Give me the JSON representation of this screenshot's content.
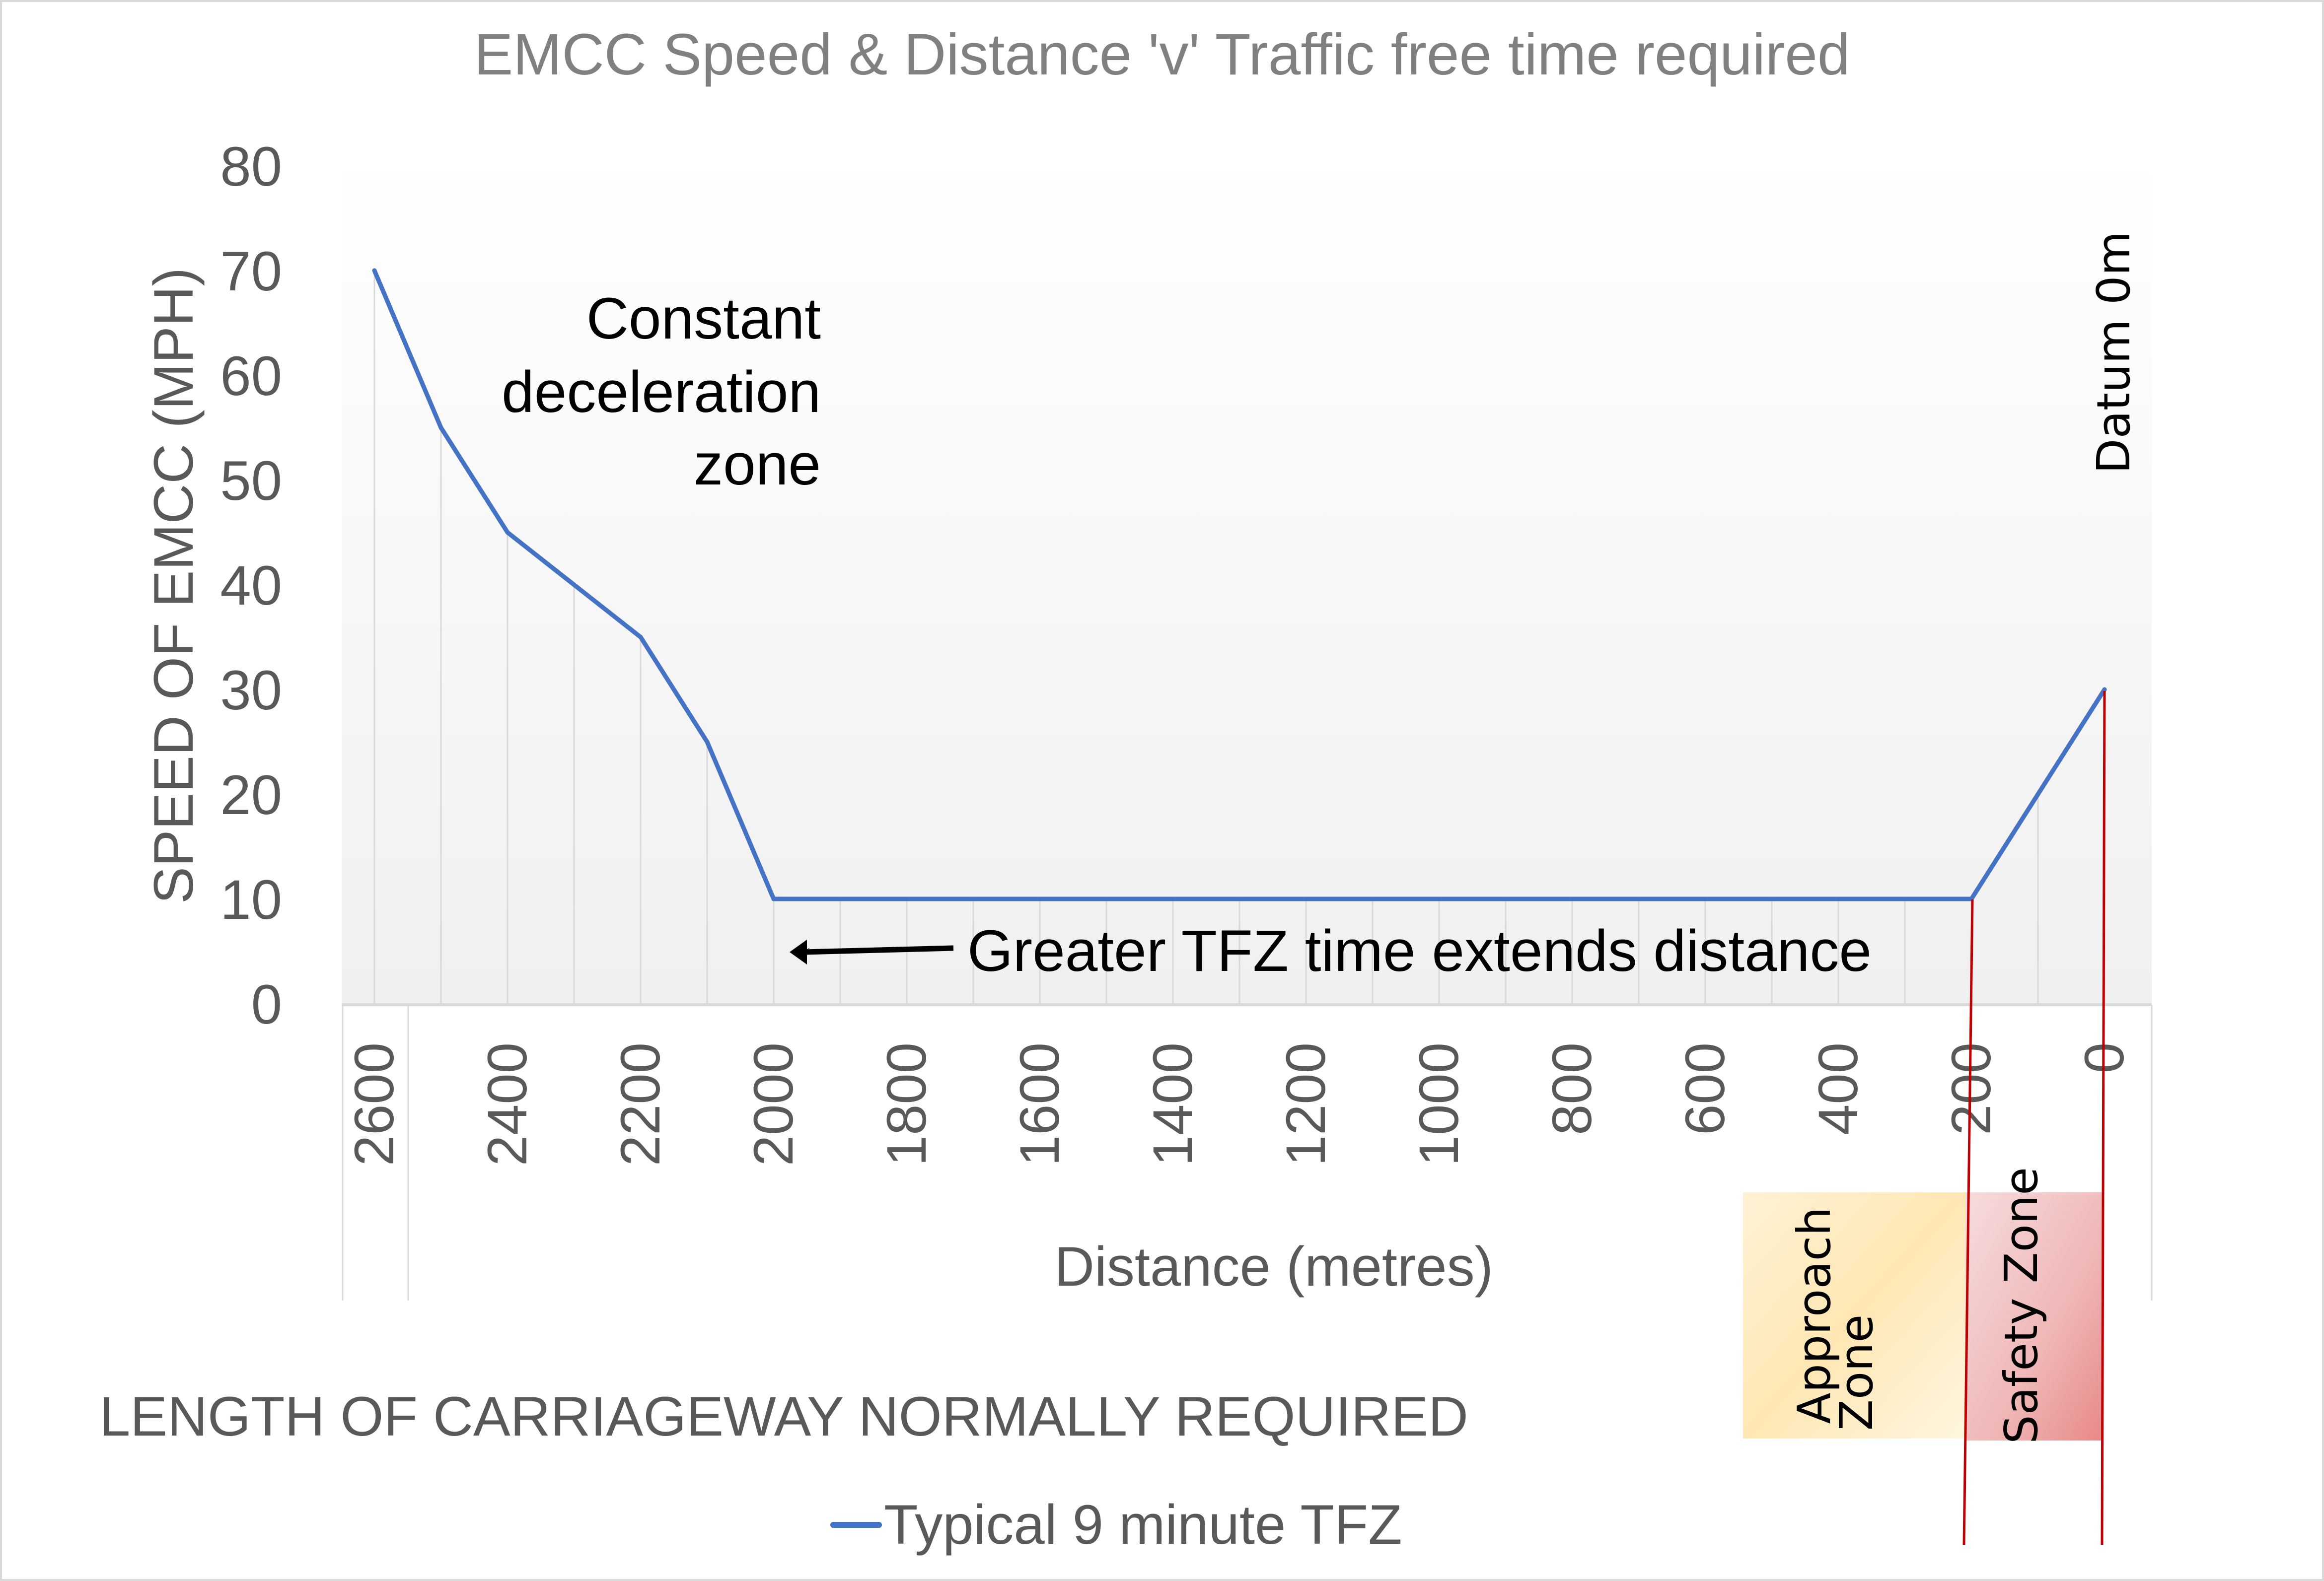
{
  "chart_data": {
    "type": "line",
    "title": "EMCC Speed & Distance 'v' Traffic free time required",
    "xlabel": "Distance (metres)",
    "ylabel": "SPEED OF EMCC (MPH)",
    "ylim": [
      0,
      80
    ],
    "yticks": [
      "0",
      "10",
      "20",
      "30",
      "40",
      "50",
      "60",
      "70",
      "80"
    ],
    "grid": "vertical",
    "categories": [
      2600,
      2500,
      2400,
      2300,
      2200,
      2100,
      2000,
      1900,
      1800,
      1700,
      1600,
      1500,
      1400,
      1300,
      1200,
      1100,
      1000,
      900,
      800,
      700,
      600,
      500,
      400,
      300,
      200,
      100,
      0
    ],
    "xtick_labels": [
      "2600",
      "2400",
      "2200",
      "2000",
      "1800",
      "1600",
      "1400",
      "1200",
      "1000",
      "800",
      "600",
      "400",
      "200",
      "0"
    ],
    "series": [
      {
        "name": "Typical 9 minute TFZ",
        "color": "#4472c4",
        "values": [
          70,
          55,
          45,
          40,
          35,
          25,
          10,
          10,
          10,
          10,
          10,
          10,
          10,
          10,
          10,
          10,
          10,
          10,
          10,
          10,
          10,
          10,
          10,
          10,
          10,
          20,
          30
        ]
      }
    ],
    "legend": {
      "position": "bottom",
      "entries": [
        "Typical 9 minute TFZ"
      ]
    },
    "annotations": {
      "deceleration": [
        "Constant",
        "deceleration",
        "zone"
      ],
      "tfz_note": "Greater TFZ time extends distance",
      "datum": "Datum 0m",
      "secondary_axis_label": "LENGTH OF CARRIAGEWAY NORMALLY REQUIRED",
      "approach_zone": [
        "Approach",
        "Zone"
      ],
      "safety_zone": "Safety Zone"
    },
    "markers": {
      "safety_zone_start_m": 200,
      "datum_m": 0
    }
  },
  "colors": {
    "line": "#4472c4",
    "marker_line": "#c00000",
    "axis_text": "#595959",
    "title_text": "#808080",
    "gridline": "#d9d9d9",
    "approach_fill": "#fde9b6",
    "safety_fill": "#f0b4b4"
  }
}
